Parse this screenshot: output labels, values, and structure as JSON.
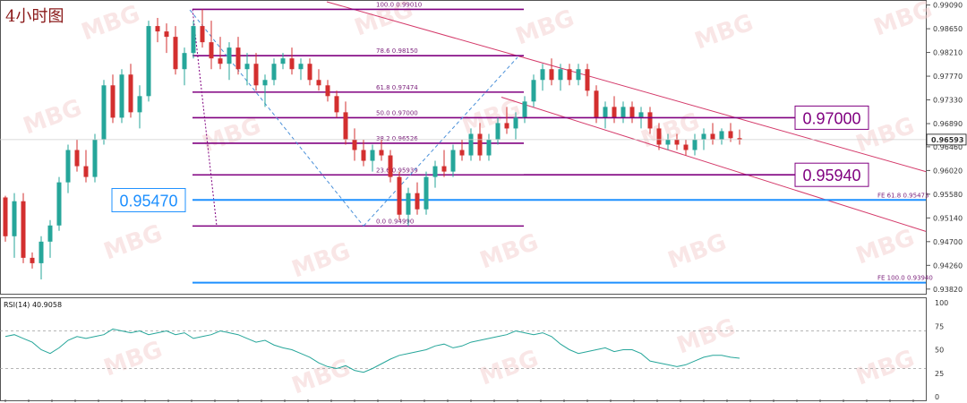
{
  "chart_title": "4小时图",
  "current_price": "0.96593",
  "watermark": "MBG",
  "price_axis": {
    "min": 0.9375,
    "max": 0.9915,
    "ticks": [
      "0.99090",
      "0.98650",
      "0.98210",
      "0.97770",
      "0.97330",
      "0.96890",
      "0.96460",
      "0.96020",
      "0.95580",
      "0.95140",
      "0.94700",
      "0.94260",
      "0.93820"
    ]
  },
  "fib_retracement": {
    "levels": [
      {
        "label": "100.0  0.99010",
        "price": 0.9901
      },
      {
        "label": "78.6  0.98150",
        "price": 0.9815
      },
      {
        "label": "61.8  0.97474",
        "price": 0.97474
      },
      {
        "label": "50.0  0.97000",
        "price": 0.97
      },
      {
        "label": "38.2  0.96526",
        "price": 0.96526
      },
      {
        "label": "23.6  0.95939",
        "price": 0.95939
      },
      {
        "label": "0.0  0.94990",
        "price": 0.9499
      }
    ]
  },
  "fib_expansion": [
    {
      "label": "FE 61.8  0.95473",
      "price": 0.95473
    },
    {
      "label": "FE 100.0  0.93940",
      "price": 0.9394
    }
  ],
  "key_levels": [
    {
      "label": "0.97000",
      "price": 0.97,
      "side": "right",
      "color": "#800080"
    },
    {
      "label": "0.95940",
      "price": 0.9594,
      "side": "right",
      "color": "#800080"
    },
    {
      "label": "0.95470",
      "price": 0.9547,
      "side": "left",
      "color": "#1e90ff"
    }
  ],
  "colors": {
    "up": "#26a69a",
    "down": "#d32f2f",
    "fib": "#800080",
    "fe": "#1e90ff",
    "channel": "#d43a6a",
    "rsi": "#26a69a"
  },
  "rsi": {
    "label": "RSI(14) 40.9058",
    "period": 14,
    "value": 40.9058,
    "ticks": [
      "100",
      "75",
      "50",
      "25",
      "0"
    ],
    "levels": [
      70,
      30
    ],
    "values": [
      64,
      66,
      62,
      58,
      50,
      46,
      52,
      60,
      64,
      62,
      64,
      66,
      72,
      70,
      68,
      70,
      66,
      68,
      70,
      66,
      68,
      62,
      64,
      66,
      70,
      68,
      66,
      62,
      58,
      60,
      55,
      52,
      50,
      46,
      42,
      36,
      32,
      30,
      33,
      28,
      26,
      30,
      35,
      40,
      44,
      46,
      48,
      50,
      54,
      56,
      52,
      54,
      58,
      60,
      62,
      64,
      66,
      70,
      68,
      66,
      68,
      64,
      56,
      50,
      46,
      48,
      50,
      52,
      48,
      50,
      50,
      46,
      38,
      36,
      34,
      32,
      34,
      38,
      42,
      44,
      44,
      42,
      41
    ]
  },
  "chart_data": {
    "type": "candlestick",
    "title": "4小时图",
    "ylim": [
      0.9375,
      0.9915
    ],
    "candles": [
      [
        0.9552,
        0.9555,
        0.947,
        0.948
      ],
      [
        0.948,
        0.956,
        0.944,
        0.9545
      ],
      [
        0.9545,
        0.956,
        0.943,
        0.944
      ],
      [
        0.944,
        0.945,
        0.942,
        0.943
      ],
      [
        0.943,
        0.948,
        0.94,
        0.947
      ],
      [
        0.947,
        0.951,
        0.944,
        0.95
      ],
      [
        0.95,
        0.959,
        0.949,
        0.958
      ],
      [
        0.958,
        0.965,
        0.956,
        0.964
      ],
      [
        0.964,
        0.966,
        0.96,
        0.961
      ],
      [
        0.961,
        0.964,
        0.958,
        0.959
      ],
      [
        0.959,
        0.967,
        0.958,
        0.966
      ],
      [
        0.966,
        0.977,
        0.965,
        0.976
      ],
      [
        0.976,
        0.978,
        0.969,
        0.97
      ],
      [
        0.97,
        0.979,
        0.969,
        0.978
      ],
      [
        0.978,
        0.98,
        0.97,
        0.971
      ],
      [
        0.971,
        0.976,
        0.968,
        0.974
      ],
      [
        0.974,
        0.988,
        0.973,
        0.987
      ],
      [
        0.987,
        0.9885,
        0.984,
        0.986
      ],
      [
        0.986,
        0.9875,
        0.982,
        0.985
      ],
      [
        0.985,
        0.987,
        0.978,
        0.979
      ],
      [
        0.979,
        0.983,
        0.976,
        0.982
      ],
      [
        0.982,
        0.988,
        0.981,
        0.987
      ],
      [
        0.987,
        0.9901,
        0.983,
        0.984
      ],
      [
        0.984,
        0.988,
        0.979,
        0.981
      ],
      [
        0.981,
        0.985,
        0.979,
        0.98
      ],
      [
        0.98,
        0.984,
        0.977,
        0.983
      ],
      [
        0.983,
        0.985,
        0.978,
        0.979
      ],
      [
        0.979,
        0.982,
        0.976,
        0.98
      ],
      [
        0.98,
        0.982,
        0.975,
        0.976
      ],
      [
        0.976,
        0.978,
        0.972,
        0.977
      ],
      [
        0.977,
        0.981,
        0.976,
        0.98
      ],
      [
        0.98,
        0.982,
        0.979,
        0.981
      ],
      [
        0.981,
        0.983,
        0.978,
        0.979
      ],
      [
        0.979,
        0.981,
        0.977,
        0.98
      ],
      [
        0.98,
        0.981,
        0.976,
        0.977
      ],
      [
        0.977,
        0.979,
        0.975,
        0.976
      ],
      [
        0.976,
        0.977,
        0.973,
        0.974
      ],
      [
        0.974,
        0.975,
        0.97,
        0.971
      ],
      [
        0.971,
        0.973,
        0.965,
        0.966
      ],
      [
        0.966,
        0.968,
        0.962,
        0.964
      ],
      [
        0.964,
        0.966,
        0.961,
        0.962
      ],
      [
        0.962,
        0.965,
        0.96,
        0.964
      ],
      [
        0.964,
        0.966,
        0.962,
        0.963
      ],
      [
        0.963,
        0.964,
        0.958,
        0.959
      ],
      [
        0.959,
        0.96,
        0.951,
        0.952
      ],
      [
        0.952,
        0.957,
        0.9499,
        0.956
      ],
      [
        0.956,
        0.958,
        0.952,
        0.953
      ],
      [
        0.953,
        0.96,
        0.952,
        0.959
      ],
      [
        0.959,
        0.962,
        0.957,
        0.961
      ],
      [
        0.961,
        0.964,
        0.959,
        0.96
      ],
      [
        0.96,
        0.965,
        0.959,
        0.964
      ],
      [
        0.964,
        0.966,
        0.962,
        0.963
      ],
      [
        0.963,
        0.968,
        0.962,
        0.967
      ],
      [
        0.967,
        0.969,
        0.962,
        0.963
      ],
      [
        0.963,
        0.967,
        0.962,
        0.966
      ],
      [
        0.966,
        0.97,
        0.965,
        0.969
      ],
      [
        0.969,
        0.972,
        0.967,
        0.968
      ],
      [
        0.968,
        0.971,
        0.966,
        0.97
      ],
      [
        0.97,
        0.974,
        0.969,
        0.973
      ],
      [
        0.973,
        0.978,
        0.972,
        0.977
      ],
      [
        0.977,
        0.98,
        0.975,
        0.979
      ],
      [
        0.979,
        0.981,
        0.976,
        0.977
      ],
      [
        0.977,
        0.98,
        0.975,
        0.979
      ],
      [
        0.979,
        0.98,
        0.976,
        0.977
      ],
      [
        0.977,
        0.98,
        0.976,
        0.979
      ],
      [
        0.979,
        0.98,
        0.974,
        0.975
      ],
      [
        0.975,
        0.976,
        0.969,
        0.97
      ],
      [
        0.97,
        0.973,
        0.968,
        0.972
      ],
      [
        0.972,
        0.974,
        0.969,
        0.97
      ],
      [
        0.97,
        0.973,
        0.969,
        0.972
      ],
      [
        0.972,
        0.973,
        0.969,
        0.97
      ],
      [
        0.97,
        0.972,
        0.968,
        0.971
      ],
      [
        0.971,
        0.972,
        0.967,
        0.968
      ],
      [
        0.968,
        0.969,
        0.964,
        0.965
      ],
      [
        0.965,
        0.967,
        0.964,
        0.966
      ],
      [
        0.966,
        0.967,
        0.964,
        0.965
      ],
      [
        0.965,
        0.966,
        0.963,
        0.964
      ],
      [
        0.964,
        0.967,
        0.963,
        0.966
      ],
      [
        0.966,
        0.968,
        0.964,
        0.967
      ],
      [
        0.967,
        0.969,
        0.965,
        0.966
      ],
      [
        0.966,
        0.968,
        0.965,
        0.9675
      ],
      [
        0.9675,
        0.969,
        0.9655,
        0.9662
      ],
      [
        0.9662,
        0.9678,
        0.965,
        0.96593
      ]
    ]
  }
}
